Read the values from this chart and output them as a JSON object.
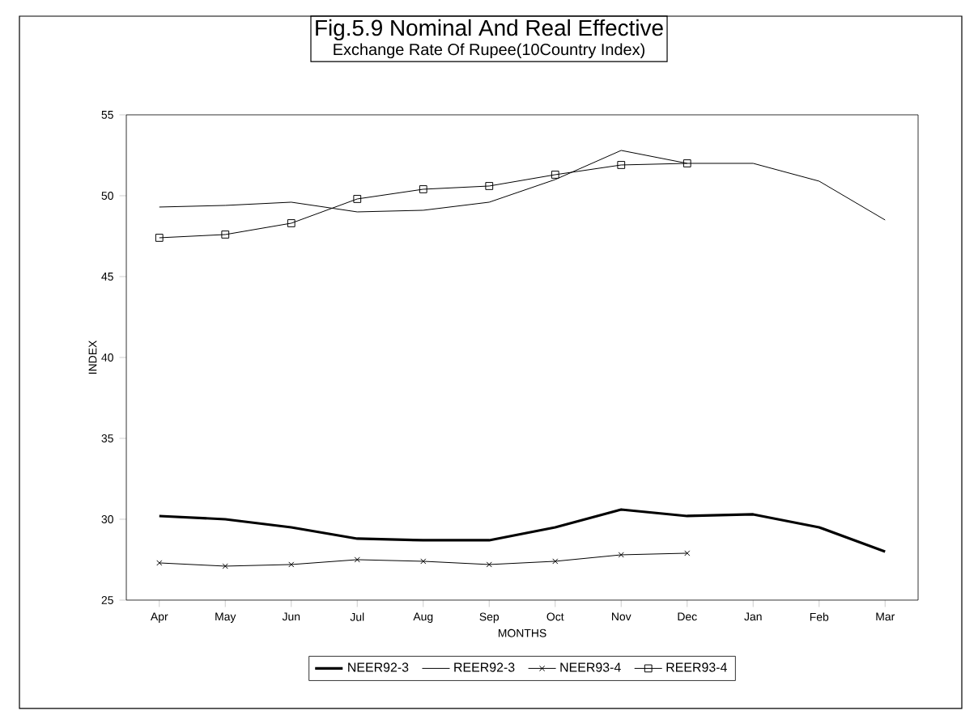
{
  "chart_data": {
    "type": "line",
    "title": "Fig.5.9 Nominal And Real Effective",
    "subtitle": "Exchange Rate Of Rupee(10Country Index)",
    "xlabel": "MONTHS",
    "ylabel": "INDEX",
    "categories": [
      "Apr",
      "May",
      "Jun",
      "Jul",
      "Aug",
      "Sep",
      "Oct",
      "Nov",
      "Dec",
      "Jan",
      "Feb",
      "Mar"
    ],
    "ylim": [
      25,
      55
    ],
    "yticks": [
      25,
      30,
      35,
      40,
      45,
      50,
      55
    ],
    "legend": "bottom",
    "grid": false,
    "series": [
      {
        "name": "NEER92-3",
        "color": "#000000",
        "marker": "none",
        "values": [
          30.2,
          30.0,
          29.5,
          28.8,
          28.7,
          28.7,
          29.5,
          30.6,
          30.2,
          30.3,
          29.5,
          28.0
        ]
      },
      {
        "name": "REER92-3",
        "color": "#000000",
        "marker": "none",
        "values": [
          49.3,
          49.4,
          49.6,
          49.0,
          49.1,
          49.6,
          51.0,
          52.8,
          52.0,
          52.0,
          50.9,
          48.5
        ]
      },
      {
        "name": "NEER93-4",
        "color": "#000000",
        "marker": "cross",
        "values": [
          27.3,
          27.1,
          27.2,
          27.5,
          27.4,
          27.2,
          27.4,
          27.8,
          27.9,
          null,
          null,
          null
        ]
      },
      {
        "name": "REER93-4",
        "color": "#000000",
        "marker": "square",
        "values": [
          47.4,
          47.6,
          48.3,
          49.8,
          50.4,
          50.6,
          51.3,
          51.9,
          52.0,
          null,
          null,
          null
        ]
      }
    ]
  }
}
